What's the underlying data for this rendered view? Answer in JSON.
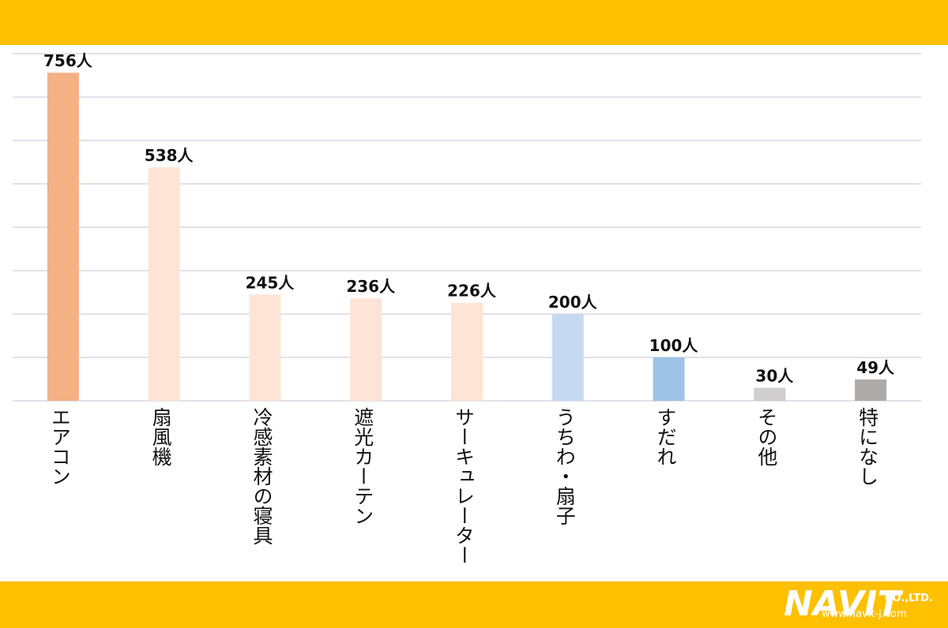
{
  "chart_data": {
    "type": "bar",
    "categories": [
      "エアコン",
      "扇風機",
      "冷感素材の寝具",
      "遮光カーテン",
      "サーキュレーター",
      "うちわ・扇子",
      "すだれ",
      "その他",
      "特になし"
    ],
    "values": [
      756,
      538,
      245,
      236,
      226,
      200,
      100,
      30,
      49
    ],
    "value_labels": [
      "756人",
      "538人",
      "245人",
      "236人",
      "226人",
      "200人",
      "100人",
      "30人",
      "49人"
    ],
    "colors": [
      "#f4b183",
      "#fde4d6",
      "#fde4d6",
      "#fde4d6",
      "#fde4d6",
      "#c5d9f1",
      "#9dc3e6",
      "#d0cece",
      "#aeaaaa"
    ],
    "ylim": [
      0,
      800
    ],
    "yticks": [
      0,
      100,
      200,
      300,
      400,
      500,
      600,
      700,
      800
    ],
    "grid": true
  },
  "logo": {
    "name": "NAVIT",
    "company": "CO.,LTD.",
    "url": "www.navit-j.com"
  }
}
